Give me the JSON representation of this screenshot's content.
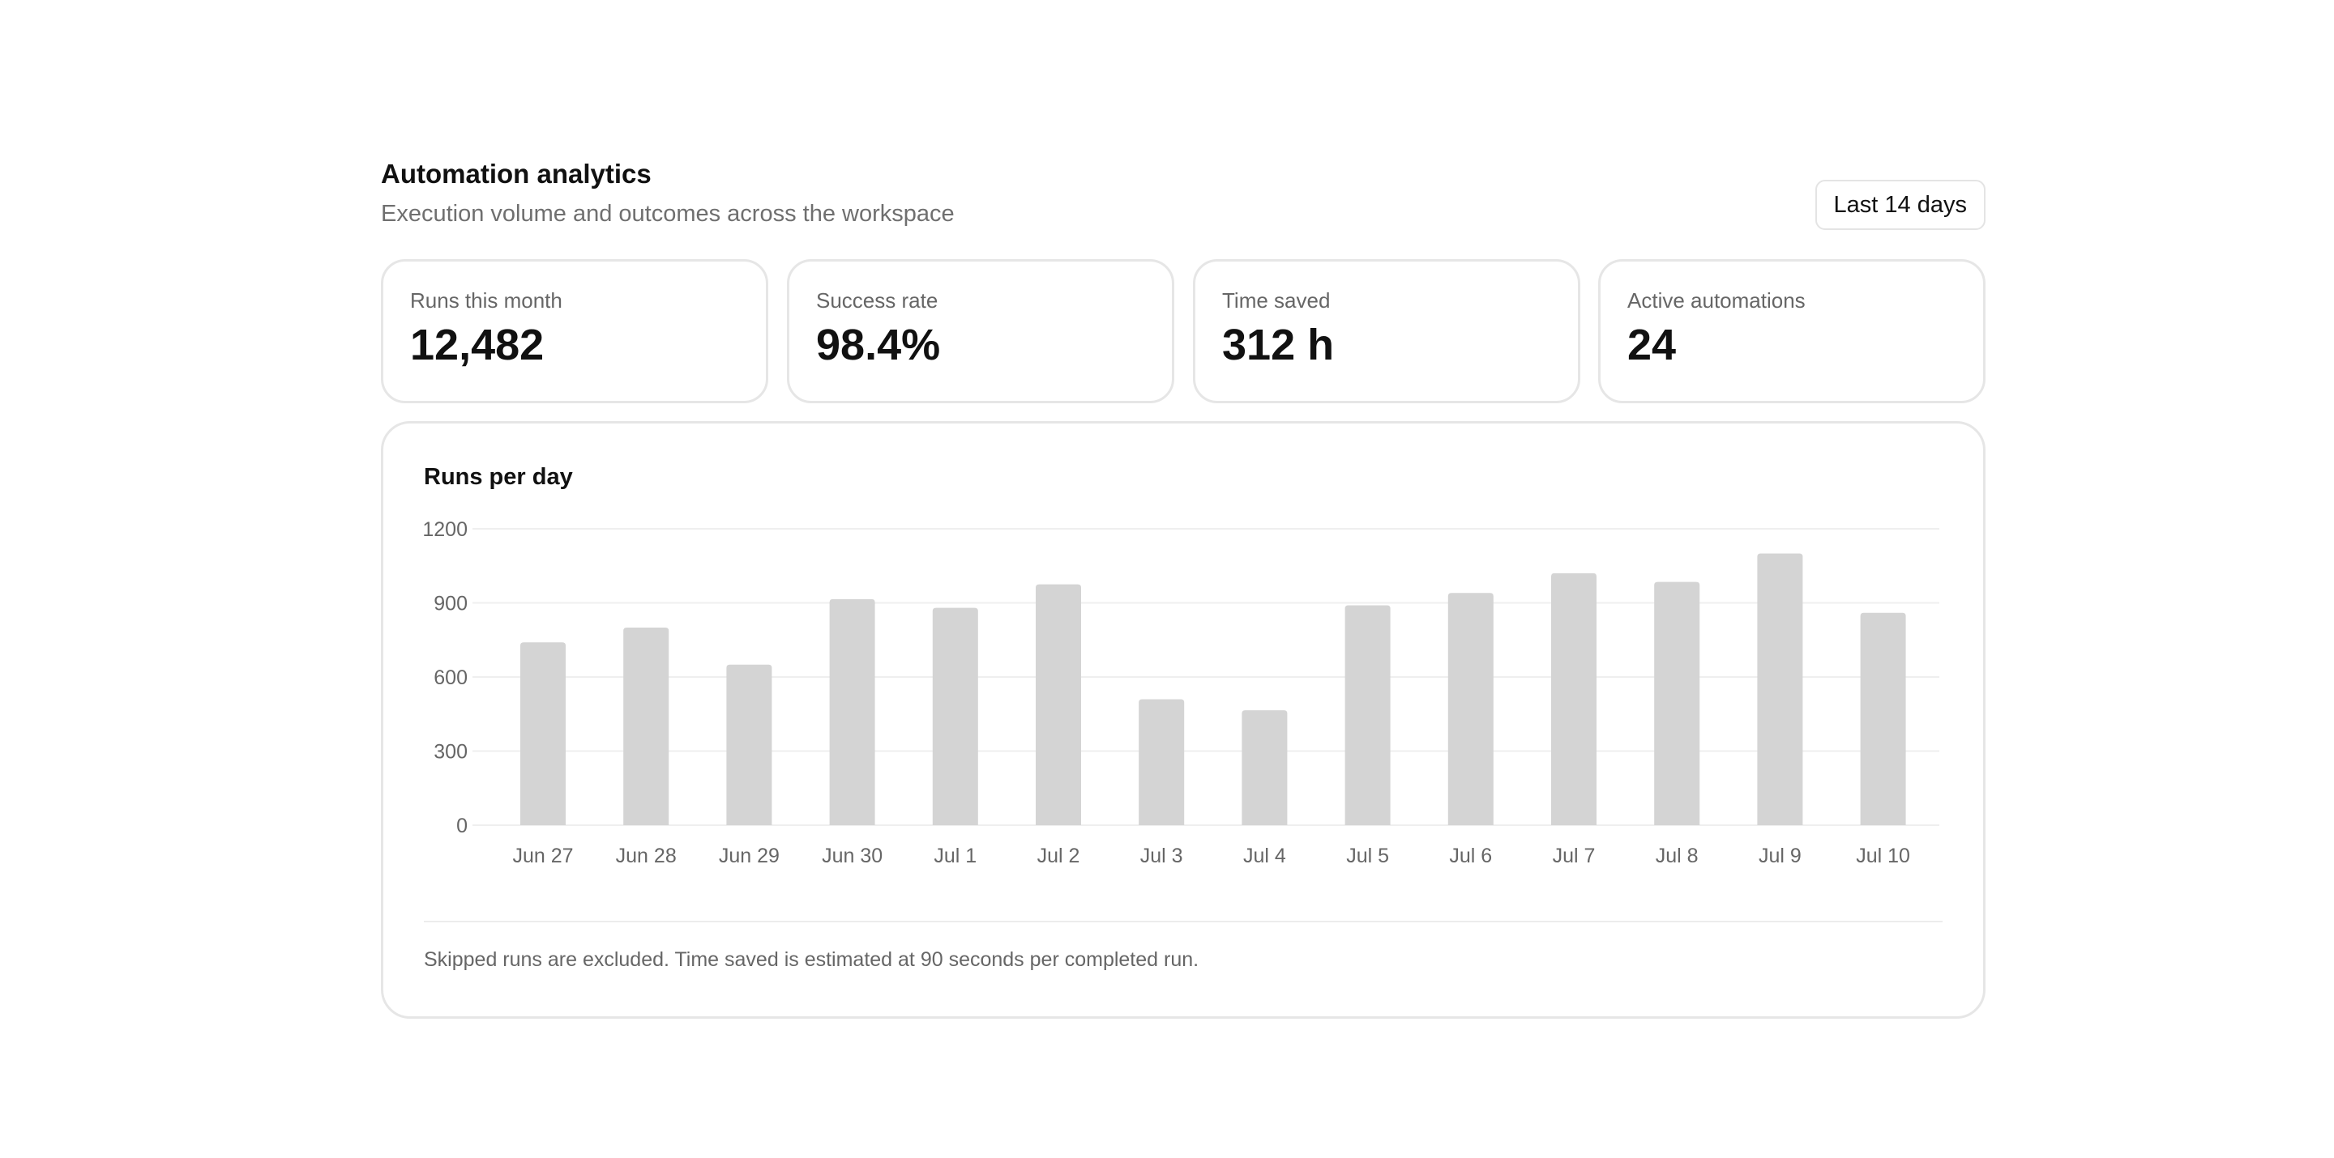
{
  "header": {
    "title": "Automation analytics",
    "subtitle": "Execution volume and outcomes across the workspace",
    "range_label": "Last 14 days"
  },
  "stats": [
    {
      "label": "Runs this month",
      "value": "12,482"
    },
    {
      "label": "Success rate",
      "value": "98.4%"
    },
    {
      "label": "Time saved",
      "value": "312 h"
    },
    {
      "label": "Active automations",
      "value": "24"
    }
  ],
  "chart": {
    "title": "Runs per day",
    "footnote": "Skipped runs are excluded. Time saved is estimated at 90 seconds per completed run."
  },
  "colors": {
    "bar": "#d4d4d4",
    "grid": "#efefef",
    "tick": "#666666"
  },
  "chart_data": {
    "type": "bar",
    "title": "Runs per day",
    "xlabel": "",
    "ylabel": "",
    "categories": [
      "Jun 27",
      "Jun 28",
      "Jun 29",
      "Jun 30",
      "Jul 1",
      "Jul 2",
      "Jul 3",
      "Jul 4",
      "Jul 5",
      "Jul 6",
      "Jul 7",
      "Jul 8",
      "Jul 9",
      "Jul 10"
    ],
    "values": [
      740,
      800,
      650,
      915,
      880,
      975,
      510,
      465,
      890,
      940,
      1020,
      985,
      1100,
      860
    ],
    "ylim": [
      0,
      1200
    ],
    "yticks": [
      0,
      300,
      600,
      900,
      1200
    ],
    "grid": true,
    "legend": false
  }
}
